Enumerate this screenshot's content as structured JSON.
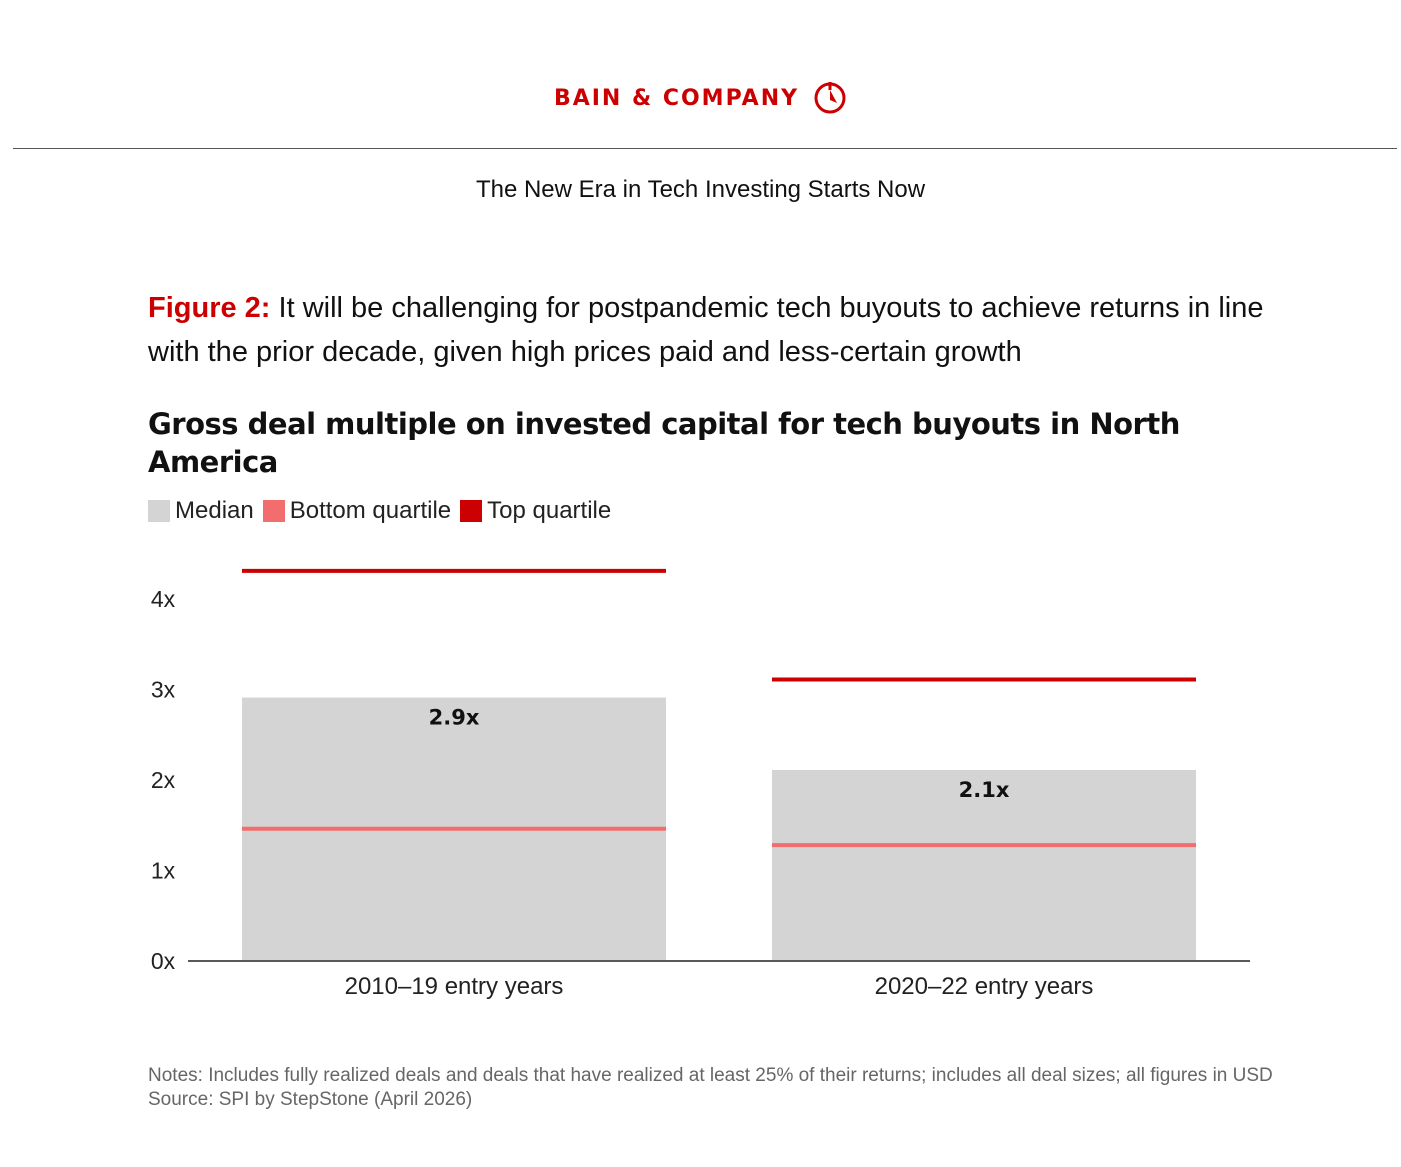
{
  "brand": {
    "name": "BAIN & COMPANY",
    "logo_icon": "bain-compass-icon",
    "color": "#cc0000"
  },
  "header": {
    "doc_title": "The New Era in Tech Investing Starts Now"
  },
  "figure": {
    "label": "Figure 2:",
    "caption": " It will be challenging for postpandemic tech buyouts to achieve returns in line with the prior decade, given high prices paid and less-certain growth"
  },
  "colors": {
    "median": "#d4d4d4",
    "bottom_quartile": "#f26d6d",
    "top_quartile": "#cc0000"
  },
  "chart_data": {
    "type": "bar",
    "title": "Gross deal multiple on invested capital for tech buyouts in North America",
    "categories": [
      "2010–19 entry years",
      "2020–22 entry years"
    ],
    "series": [
      {
        "name": "Median",
        "values": [
          2.9,
          2.1
        ],
        "labels": [
          "2.9x",
          "2.1x"
        ],
        "color": "#d4d4d4"
      },
      {
        "name": "Bottom quartile",
        "values": [
          1.45,
          1.27
        ],
        "color": "#f26d6d"
      },
      {
        "name": "Top quartile",
        "values": [
          4.3,
          3.1
        ],
        "color": "#cc0000"
      }
    ],
    "yticks": [
      "0x",
      "1x",
      "2x",
      "3x",
      "4x"
    ],
    "ylim": [
      0,
      4.4
    ],
    "xlabel": "",
    "ylabel": "",
    "legend_position": "top-left",
    "grid": false
  },
  "notes": {
    "text": "Notes: Includes fully realized deals and deals that have realized at least 25% of their returns; includes all deal sizes; all figures in USD",
    "source": "Source: SPI by StepStone (April 2026)"
  }
}
